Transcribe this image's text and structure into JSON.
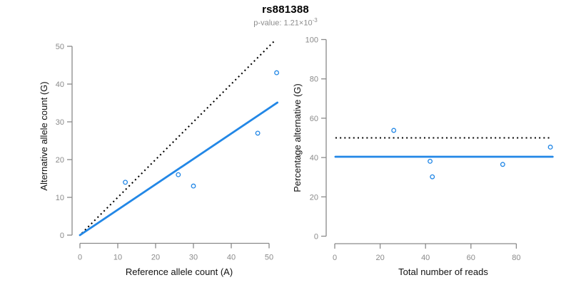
{
  "figure": {
    "title": "rs881388",
    "subtitle": {
      "base": "p-value: 1.21×10",
      "exponent": "-3"
    }
  },
  "colors": {
    "accent_blue": "#2287E6",
    "dotted_black": "#000000",
    "axis_gray": "#8a8a8a",
    "tick_label_gray": "#8a8a8a",
    "axis_title_black": "#111111",
    "subtitle_gray": "#8c8c8c",
    "background": "#ffffff"
  },
  "chart_data": [
    {
      "type": "scatter",
      "name": "allele-counts-scatter",
      "xlabel": "Reference allele count (A)",
      "ylabel": "Alternative allele count (G)",
      "xticks": [
        0,
        10,
        20,
        30,
        40,
        50
      ],
      "yticks": [
        0,
        10,
        20,
        30,
        40,
        50
      ],
      "xlim": [
        0,
        52.5
      ],
      "ylim": [
        0,
        52.5
      ],
      "grid": false,
      "legend": "none",
      "point_color": "#2287E6",
      "points": [
        {
          "x": 12,
          "y": 14
        },
        {
          "x": 26,
          "y": 16
        },
        {
          "x": 30,
          "y": 13
        },
        {
          "x": 47,
          "y": 27
        },
        {
          "x": 52,
          "y": 43
        }
      ],
      "lines": [
        {
          "name": "identity-line",
          "style": "dotted",
          "color": "#000000",
          "x": [
            0.5,
            51.7
          ],
          "y": [
            0.5,
            51.7
          ]
        },
        {
          "name": "fit-line",
          "style": "solid",
          "color": "#2287E6",
          "x": [
            0,
            52.2
          ],
          "y": [
            0,
            35.1
          ]
        }
      ]
    },
    {
      "type": "scatter",
      "name": "percentage-vs-reads-scatter",
      "xlabel": "Total number of reads",
      "ylabel": "Percentage alternative (G)",
      "xticks": [
        0,
        20,
        40,
        60,
        80
      ],
      "yticks": [
        0,
        20,
        40,
        60,
        80,
        100
      ],
      "xlim": [
        0,
        96
      ],
      "ylim": [
        0,
        100
      ],
      "grid": false,
      "legend": "none",
      "point_color": "#2287E6",
      "points": [
        {
          "x": 26,
          "y": 53.8
        },
        {
          "x": 42,
          "y": 38.1
        },
        {
          "x": 43,
          "y": 30.2
        },
        {
          "x": 74,
          "y": 36.5
        },
        {
          "x": 95,
          "y": 45.3
        }
      ],
      "lines": [
        {
          "name": "expected-50pct-line",
          "style": "dotted",
          "color": "#000000",
          "x": [
            0.3,
            95.5
          ],
          "y": [
            50,
            50
          ]
        },
        {
          "name": "fit-line",
          "style": "solid",
          "color": "#2287E6",
          "x": [
            0.3,
            96
          ],
          "y": [
            40.4,
            40.4
          ]
        }
      ]
    }
  ]
}
